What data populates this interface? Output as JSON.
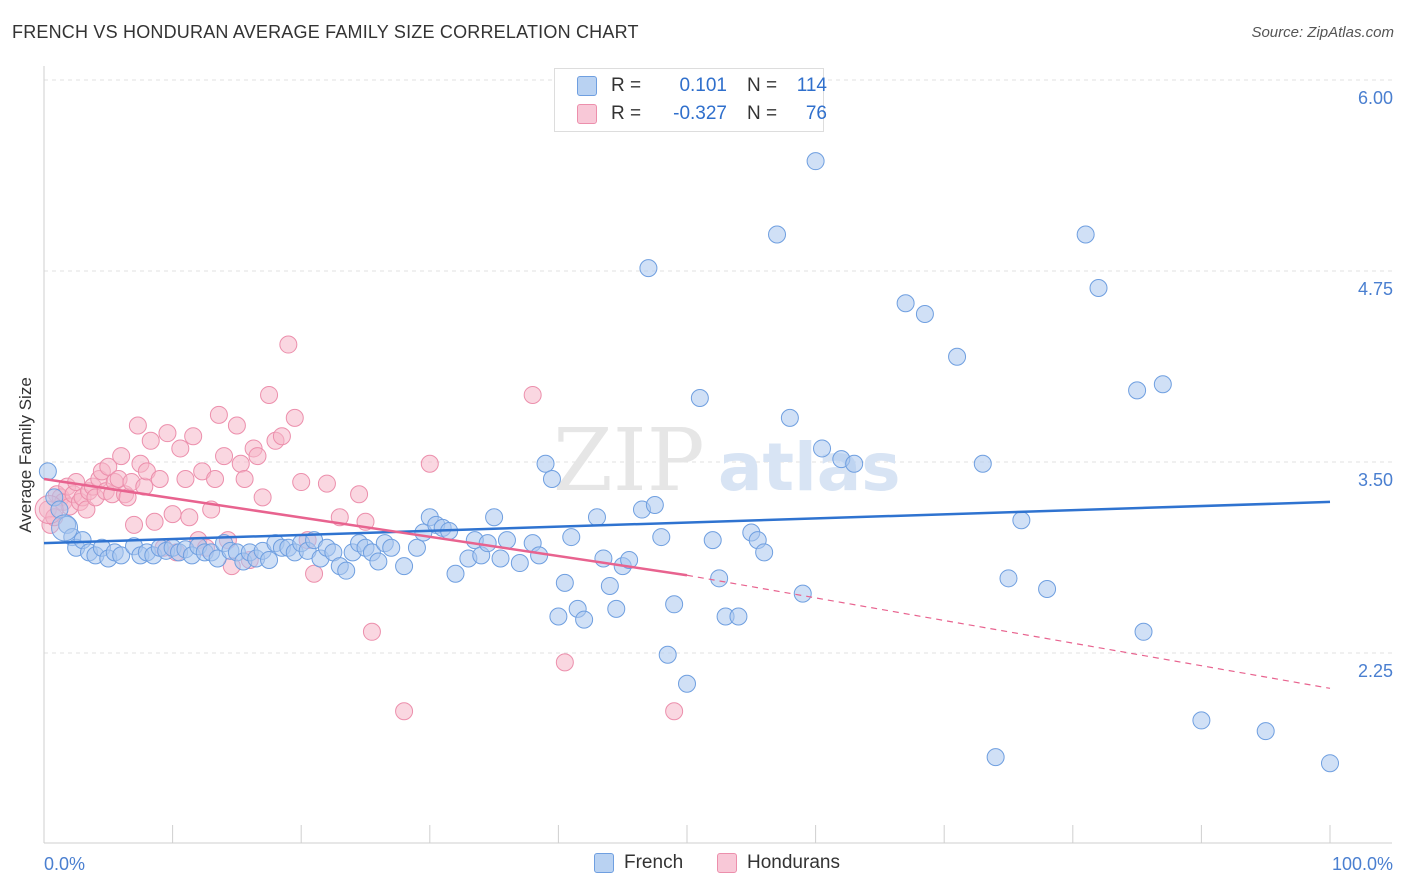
{
  "header": {
    "title": "FRENCH VS HONDURAN AVERAGE FAMILY SIZE CORRELATION CHART",
    "source": "Source: ZipAtlas.com"
  },
  "watermark": {
    "text_zip": "ZIP",
    "text_atlas": "atlas"
  },
  "legend": {
    "french": {
      "r_label": "R =",
      "r_value": "0.101",
      "n_label": "N =",
      "n_value": "114"
    },
    "hondurans": {
      "r_label": "R =",
      "r_value": "-0.327",
      "n_label": "N =",
      "n_value": "76"
    }
  },
  "colors": {
    "french_fill": "#a9c6ee",
    "french_stroke": "#6f9fe0",
    "french_line": "#2f73d0",
    "hondurans_fill": "#f5b6c9",
    "hondurans_stroke": "#ec8fac",
    "hondurans_line": "#e8638f",
    "grid": "#e2e2e2",
    "tick_text": "#4a7fd0"
  },
  "chart_data": {
    "type": "scatter",
    "title": "FRENCH VS HONDURAN AVERAGE FAMILY SIZE CORRELATION CHART",
    "xlabel": "",
    "ylabel": "Average Family Size",
    "xlim": [
      0,
      100
    ],
    "ylim": [
      1.25,
      6.15
    ],
    "x_tick_labels": [
      "0.0%",
      "100.0%"
    ],
    "y_ticks": [
      2.25,
      3.5,
      4.75,
      6.0
    ],
    "y_tick_labels": [
      "2.25",
      "3.50",
      "4.75",
      "6.00"
    ],
    "grid": "horizontal dashed",
    "legend_position": "top-center and bottom",
    "series": [
      {
        "name": "French",
        "trend": {
          "x": [
            0,
            100
          ],
          "y": [
            3.08,
            3.35
          ]
        },
        "points": [
          [
            0.3,
            3.55
          ],
          [
            0.8,
            3.38
          ],
          [
            1.2,
            3.3
          ],
          [
            1.8,
            3.2
          ],
          [
            2.2,
            3.12
          ],
          [
            2.5,
            3.05
          ],
          [
            3,
            3.1
          ],
          [
            3.5,
            3.02
          ],
          [
            4,
            3
          ],
          [
            4.5,
            3.05
          ],
          [
            5,
            2.98
          ],
          [
            5.5,
            3.02
          ],
          [
            6,
            3
          ],
          [
            7,
            3.06
          ],
          [
            7.5,
            3
          ],
          [
            8,
            3.02
          ],
          [
            8.5,
            3
          ],
          [
            9,
            3.05
          ],
          [
            9.5,
            3.03
          ],
          [
            10,
            3.05
          ],
          [
            10.5,
            3.02
          ],
          [
            11,
            3.04
          ],
          [
            11.5,
            3
          ],
          [
            12,
            3.06
          ],
          [
            12.5,
            3.02
          ],
          [
            13,
            3.02
          ],
          [
            13.5,
            2.98
          ],
          [
            14,
            3.08
          ],
          [
            14.5,
            3.03
          ],
          [
            15,
            3.02
          ],
          [
            15.5,
            2.96
          ],
          [
            16,
            3.02
          ],
          [
            16.5,
            2.98
          ],
          [
            17,
            3.03
          ],
          [
            17.5,
            2.97
          ],
          [
            18,
            3.08
          ],
          [
            18.5,
            3.05
          ],
          [
            19,
            3.05
          ],
          [
            19.5,
            3.02
          ],
          [
            20,
            3.08
          ],
          [
            20.5,
            3.03
          ],
          [
            21,
            3.1
          ],
          [
            21.5,
            2.98
          ],
          [
            22,
            3.05
          ],
          [
            22.5,
            3.02
          ],
          [
            23,
            2.93
          ],
          [
            23.5,
            2.9
          ],
          [
            24,
            3.02
          ],
          [
            24.5,
            3.08
          ],
          [
            25,
            3.05
          ],
          [
            25.5,
            3.02
          ],
          [
            26,
            2.96
          ],
          [
            26.5,
            3.08
          ],
          [
            27,
            3.05
          ],
          [
            28,
            2.93
          ],
          [
            29,
            3.05
          ],
          [
            29.5,
            3.15
          ],
          [
            30,
            3.25
          ],
          [
            30.5,
            3.2
          ],
          [
            31,
            3.18
          ],
          [
            31.5,
            3.16
          ],
          [
            32,
            2.88
          ],
          [
            33,
            2.98
          ],
          [
            33.5,
            3.1
          ],
          [
            34,
            3.0
          ],
          [
            34.5,
            3.08
          ],
          [
            35,
            3.25
          ],
          [
            35.5,
            2.98
          ],
          [
            36,
            3.1
          ],
          [
            37,
            2.95
          ],
          [
            38,
            3.08
          ],
          [
            38.5,
            3.0
          ],
          [
            39,
            3.6
          ],
          [
            39.5,
            3.5
          ],
          [
            40,
            2.6
          ],
          [
            40.5,
            2.82
          ],
          [
            41,
            3.12
          ],
          [
            41.5,
            2.65
          ],
          [
            42,
            2.58
          ],
          [
            43,
            3.25
          ],
          [
            43.5,
            2.98
          ],
          [
            44,
            2.8
          ],
          [
            44.5,
            2.65
          ],
          [
            45,
            2.93
          ],
          [
            45.5,
            2.97
          ],
          [
            46.5,
            3.3
          ],
          [
            47,
            4.88
          ],
          [
            47.5,
            3.33
          ],
          [
            48,
            3.12
          ],
          [
            48.5,
            2.35
          ],
          [
            49,
            2.68
          ],
          [
            50,
            2.16
          ],
          [
            51,
            4.03
          ],
          [
            52,
            3.1
          ],
          [
            52.5,
            2.85
          ],
          [
            53,
            2.6
          ],
          [
            54,
            2.6
          ],
          [
            55,
            3.15
          ],
          [
            55.5,
            3.1
          ],
          [
            56,
            3.02
          ],
          [
            57,
            5.1
          ],
          [
            58,
            3.9
          ],
          [
            59,
            2.75
          ],
          [
            60,
            5.58
          ],
          [
            60.5,
            3.7
          ],
          [
            62,
            3.63
          ],
          [
            63,
            3.6
          ],
          [
            67,
            4.65
          ],
          [
            68.5,
            4.58
          ],
          [
            71,
            4.3
          ],
          [
            73,
            3.6
          ],
          [
            74,
            1.68
          ],
          [
            75,
            2.85
          ],
          [
            76,
            3.23
          ],
          [
            78,
            2.78
          ],
          [
            81,
            5.1
          ],
          [
            82,
            4.75
          ],
          [
            85,
            4.08
          ],
          [
            85.5,
            2.5
          ],
          [
            87,
            4.12
          ],
          [
            90,
            1.92
          ],
          [
            95,
            1.85
          ],
          [
            100,
            1.64
          ]
        ]
      },
      {
        "name": "Hondurans",
        "trend": {
          "x": [
            0,
            50
          ],
          "y": [
            3.5,
            2.87
          ]
        },
        "trend_dashed": {
          "x": [
            50,
            100
          ],
          "y": [
            2.87,
            2.13
          ]
        },
        "points": [
          [
            0.3,
            3.3
          ],
          [
            0.5,
            3.2
          ],
          [
            0.8,
            3.25
          ],
          [
            1,
            3.4
          ],
          [
            1.3,
            3.38
          ],
          [
            1.5,
            3.35
          ],
          [
            1.8,
            3.45
          ],
          [
            2,
            3.32
          ],
          [
            2.3,
            3.4
          ],
          [
            2.5,
            3.48
          ],
          [
            2.8,
            3.35
          ],
          [
            3,
            3.38
          ],
          [
            3.3,
            3.3
          ],
          [
            3.5,
            3.42
          ],
          [
            3.8,
            3.45
          ],
          [
            4,
            3.38
          ],
          [
            4.3,
            3.5
          ],
          [
            4.5,
            3.55
          ],
          [
            4.8,
            3.42
          ],
          [
            5,
            3.58
          ],
          [
            5.3,
            3.4
          ],
          [
            5.5,
            3.48
          ],
          [
            5.8,
            3.5
          ],
          [
            6,
            3.65
          ],
          [
            6.3,
            3.4
          ],
          [
            6.5,
            3.38
          ],
          [
            6.8,
            3.48
          ],
          [
            7,
            3.2
          ],
          [
            7.3,
            3.85
          ],
          [
            7.5,
            3.6
          ],
          [
            7.8,
            3.45
          ],
          [
            8,
            3.55
          ],
          [
            8.3,
            3.75
          ],
          [
            8.6,
            3.22
          ],
          [
            9,
            3.5
          ],
          [
            9.3,
            3.05
          ],
          [
            9.6,
            3.8
          ],
          [
            10,
            3.27
          ],
          [
            10.3,
            3.02
          ],
          [
            10.6,
            3.7
          ],
          [
            11,
            3.5
          ],
          [
            11.3,
            3.25
          ],
          [
            11.6,
            3.78
          ],
          [
            12,
            3.1
          ],
          [
            12.3,
            3.55
          ],
          [
            12.6,
            3.05
          ],
          [
            13,
            3.3
          ],
          [
            13.3,
            3.5
          ],
          [
            13.6,
            3.92
          ],
          [
            14,
            3.65
          ],
          [
            14.3,
            3.1
          ],
          [
            14.6,
            2.93
          ],
          [
            15,
            3.85
          ],
          [
            15.3,
            3.6
          ],
          [
            15.6,
            3.5
          ],
          [
            16,
            2.97
          ],
          [
            16.3,
            3.7
          ],
          [
            16.6,
            3.65
          ],
          [
            17,
            3.38
          ],
          [
            17.5,
            4.05
          ],
          [
            18,
            3.75
          ],
          [
            18.5,
            3.78
          ],
          [
            19,
            4.38
          ],
          [
            19.5,
            3.9
          ],
          [
            20,
            3.48
          ],
          [
            20.5,
            3.1
          ],
          [
            21,
            2.88
          ],
          [
            22,
            3.47
          ],
          [
            23,
            3.25
          ],
          [
            24.5,
            3.4
          ],
          [
            25,
            3.22
          ],
          [
            25.5,
            2.5
          ],
          [
            28,
            1.98
          ],
          [
            30,
            3.6
          ],
          [
            38,
            4.05
          ],
          [
            40.5,
            2.3
          ],
          [
            49,
            1.98
          ]
        ]
      }
    ]
  }
}
